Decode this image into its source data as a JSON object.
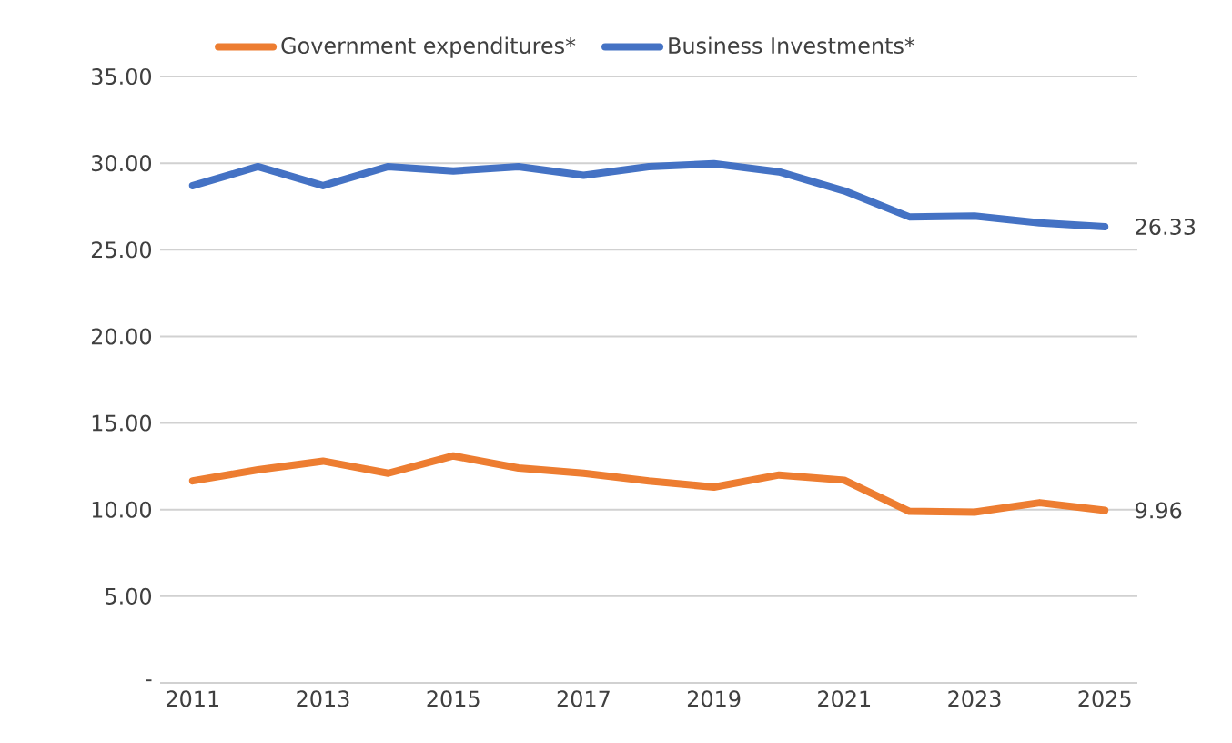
{
  "chart_data": {
    "type": "line",
    "x": [
      2011,
      2012,
      2013,
      2014,
      2015,
      2016,
      2017,
      2018,
      2019,
      2020,
      2021,
      2022,
      2023,
      2024,
      2025
    ],
    "series": [
      {
        "name": "Government expenditures*",
        "color": "#ed7d31",
        "values": [
          11.66,
          12.3,
          12.8,
          12.1,
          13.1,
          12.4,
          12.1,
          11.65,
          11.3,
          12.0,
          11.7,
          9.9,
          9.85,
          10.4,
          9.96
        ]
      },
      {
        "name": "Business Investments*",
        "color": "#4472c4",
        "values": [
          28.7,
          29.8,
          28.7,
          29.8,
          29.55,
          29.8,
          29.3,
          29.8,
          29.97,
          29.5,
          28.4,
          26.9,
          26.95,
          26.55,
          26.33
        ]
      }
    ],
    "xlim": [
      2010.5,
      2025.5
    ],
    "xticks": [
      2011,
      2013,
      2015,
      2017,
      2019,
      2021,
      2023,
      2025
    ],
    "ylim": [
      0,
      35
    ],
    "yticks": [
      {
        "value": 0,
        "label": "-"
      },
      {
        "value": 5,
        "label": "5.00"
      },
      {
        "value": 10,
        "label": "10.00"
      },
      {
        "value": 15,
        "label": "15.00"
      },
      {
        "value": 20,
        "label": "20.00"
      },
      {
        "value": 25,
        "label": "25.00"
      },
      {
        "value": 30,
        "label": "30.00"
      },
      {
        "value": 35,
        "label": "35.00"
      }
    ],
    "grid": "y",
    "legend": "top",
    "marker": "none",
    "line_style": "solid",
    "annotations": [
      {
        "text": "26.33",
        "x": 2025,
        "y": 26.33
      },
      {
        "text": "9.96",
        "x": 2025,
        "y": 9.96
      }
    ]
  }
}
